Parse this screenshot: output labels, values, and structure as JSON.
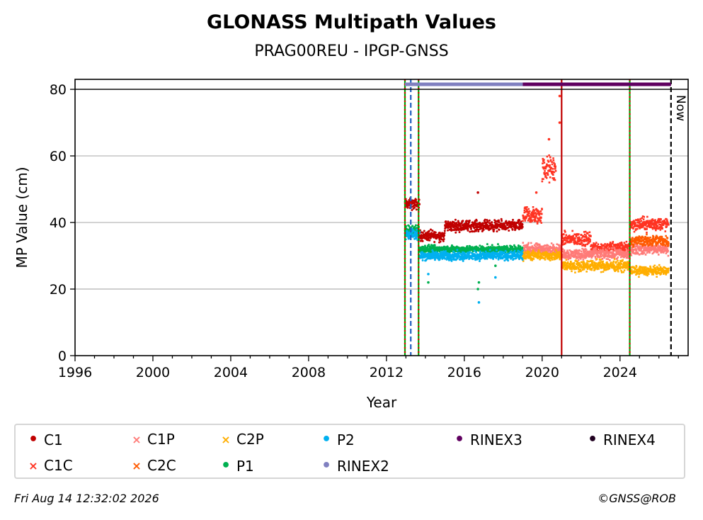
{
  "header": {
    "title": "GLONASS Multipath Values",
    "subtitle": "PRAG00REU - IPGP-GNSS"
  },
  "footer": {
    "timestamp": "Fri Aug 14 12:32:02 2026",
    "copyright": "©GNSS@ROB"
  },
  "chart_data": {
    "type": "scatter",
    "title": "GLONASS Multipath Values",
    "subtitle": "PRAG00REU - IPGP-GNSS",
    "xlabel": "Year",
    "ylabel": "MP Value (cm)",
    "xlim": [
      1996,
      2027.5
    ],
    "ylim": [
      0,
      83
    ],
    "x_ticks": [
      1996,
      2000,
      2004,
      2008,
      2012,
      2016,
      2020,
      2024
    ],
    "y_ticks": [
      0,
      20,
      40,
      60,
      80
    ],
    "grid": "horizontal",
    "legend_position": "bottom",
    "now_label": "Now",
    "now_year": 2026.62,
    "colors": {
      "C1": "#c00000",
      "C1C": "#ff3322",
      "C1P": "#ff7b78",
      "C2C": "#ff5a00",
      "C2P": "#ffae00",
      "P1": "#00b050",
      "P2": "#00b0f0",
      "RINEX2": "#8080c0",
      "RINEX3": "#600060",
      "RINEX4": "#200020"
    },
    "legend": [
      {
        "name": "C1",
        "marker": "dot"
      },
      {
        "name": "C1C",
        "marker": "x"
      },
      {
        "name": "C1P",
        "marker": "x"
      },
      {
        "name": "C2C",
        "marker": "x"
      },
      {
        "name": "C2P",
        "marker": "x"
      },
      {
        "name": "P1",
        "marker": "dot"
      },
      {
        "name": "P2",
        "marker": "dot"
      },
      {
        "name": "RINEX2",
        "marker": "dot"
      },
      {
        "name": "RINEX3",
        "marker": "dot"
      },
      {
        "name": "RINEX4",
        "marker": "dot"
      }
    ],
    "series": [
      {
        "name": "C1",
        "segments": [
          {
            "x0": 2012.95,
            "x1": 2013.7,
            "y": 45.5,
            "spread": 1.2
          },
          {
            "x0": 2013.7,
            "x1": 2015.0,
            "y": 36.0,
            "spread": 1.2
          },
          {
            "x0": 2015.0,
            "x1": 2019.0,
            "y": 39.0,
            "spread": 1.2
          }
        ]
      },
      {
        "name": "C1C",
        "segments": [
          {
            "x0": 2019.0,
            "x1": 2020.0,
            "y": 42.0,
            "spread": 2.0
          },
          {
            "x0": 2020.0,
            "x1": 2020.7,
            "y": 56.0,
            "spread": 3.0
          },
          {
            "x0": 2021.0,
            "x1": 2022.5,
            "y": 35.0,
            "spread": 1.5
          },
          {
            "x0": 2022.5,
            "x1": 2024.5,
            "y": 32.5,
            "spread": 1.2
          },
          {
            "x0": 2024.5,
            "x1": 2026.5,
            "y": 39.5,
            "spread": 1.5
          }
        ]
      },
      {
        "name": "C1P",
        "segments": [
          {
            "x0": 2019.0,
            "x1": 2021.0,
            "y": 32.0,
            "spread": 1.2
          },
          {
            "x0": 2021.0,
            "x1": 2024.5,
            "y": 30.5,
            "spread": 1.2
          },
          {
            "x0": 2024.5,
            "x1": 2026.5,
            "y": 32.0,
            "spread": 1.2
          }
        ]
      },
      {
        "name": "C2C",
        "segments": [
          {
            "x0": 2024.5,
            "x1": 2026.5,
            "y": 34.5,
            "spread": 1.2
          }
        ]
      },
      {
        "name": "C2P",
        "segments": [
          {
            "x0": 2019.0,
            "x1": 2021.0,
            "y": 30.0,
            "spread": 1.0
          },
          {
            "x0": 2021.0,
            "x1": 2024.5,
            "y": 27.0,
            "spread": 1.2
          },
          {
            "x0": 2024.5,
            "x1": 2026.5,
            "y": 25.5,
            "spread": 1.0
          }
        ]
      },
      {
        "name": "P1",
        "segments": [
          {
            "x0": 2012.95,
            "x1": 2013.7,
            "y": 37.5,
            "spread": 1.2
          },
          {
            "x0": 2013.7,
            "x1": 2019.0,
            "y": 32.0,
            "spread": 0.8
          }
        ]
      },
      {
        "name": "P2",
        "segments": [
          {
            "x0": 2012.95,
            "x1": 2013.7,
            "y": 36.5,
            "spread": 1.2
          },
          {
            "x0": 2013.7,
            "x1": 2019.0,
            "y": 30.0,
            "spread": 1.0
          }
        ]
      }
    ],
    "outliers": [
      {
        "series": "C1",
        "x": 2016.7,
        "y": 49
      },
      {
        "series": "P1",
        "x": 2016.7,
        "y": 20
      },
      {
        "series": "P2",
        "x": 2016.75,
        "y": 16
      },
      {
        "series": "P1",
        "x": 2016.75,
        "y": 22
      },
      {
        "series": "P2",
        "x": 2014.15,
        "y": 24.5
      },
      {
        "series": "P1",
        "x": 2014.15,
        "y": 22
      },
      {
        "series": "P2",
        "x": 2017.6,
        "y": 23.5
      },
      {
        "series": "P1",
        "x": 2017.6,
        "y": 27
      },
      {
        "series": "C1C",
        "x": 2020.9,
        "y": 78
      },
      {
        "series": "C1C",
        "x": 2020.9,
        "y": 70
      },
      {
        "series": "C1C",
        "x": 2020.35,
        "y": 65
      },
      {
        "series": "C1C",
        "x": 2019.7,
        "y": 49
      }
    ],
    "vertical_lines": [
      {
        "x": 2012.95,
        "color": "#00a000",
        "style": "dotted-red"
      },
      {
        "x": 2013.25,
        "color": "#1f5fbf",
        "style": "dashed"
      },
      {
        "x": 2013.65,
        "color": "#00a000",
        "style": "dotted-red"
      },
      {
        "x": 2021.0,
        "color": "#c00000",
        "style": "solid"
      },
      {
        "x": 2024.5,
        "color": "#00a000",
        "style": "dotted-red"
      },
      {
        "x": 2026.62,
        "color": "#000000",
        "style": "dashed"
      }
    ],
    "rinex_bars": [
      {
        "name": "RINEX2",
        "x0": 2012.95,
        "x1": 2019.0,
        "y": 81.5
      },
      {
        "name": "RINEX3",
        "x0": 2019.0,
        "x1": 2026.62,
        "y": 81.5
      }
    ]
  }
}
